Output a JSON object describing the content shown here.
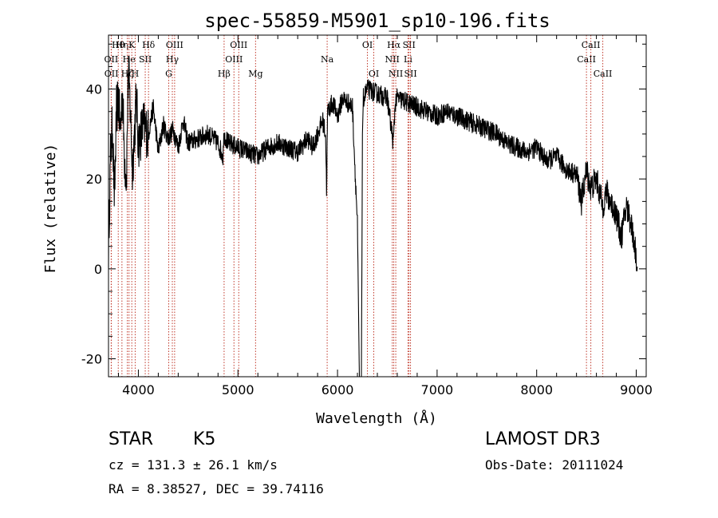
{
  "chart_data": {
    "type": "line",
    "title": "spec-55859-M5901_sp10-196.fits",
    "xlabel": "Wavelength (Å)",
    "ylabel": "Flux (relative)",
    "xlim": [
      3700,
      9100
    ],
    "ylim": [
      -24,
      52
    ],
    "xticks": [
      4000,
      5000,
      6000,
      7000,
      8000,
      9000
    ],
    "yticks": [
      -20,
      0,
      20,
      40
    ],
    "series": [
      {
        "name": "flux",
        "x": [
          3700,
          3720,
          3740,
          3760,
          3780,
          3800,
          3820,
          3840,
          3860,
          3880,
          3900,
          3920,
          3940,
          3960,
          3980,
          4000,
          4050,
          4100,
          4150,
          4200,
          4250,
          4300,
          4350,
          4400,
          4450,
          4500,
          4600,
          4700,
          4800,
          4850,
          4860,
          4900,
          5000,
          5100,
          5200,
          5300,
          5400,
          5500,
          5600,
          5700,
          5750,
          5800,
          5850,
          5880,
          5890,
          5900,
          5950,
          6000,
          6050,
          6100,
          6150,
          6180,
          6200,
          6220,
          6240,
          6250,
          6260,
          6300,
          6400,
          6500,
          6560,
          6580,
          6600,
          6700,
          6800,
          6900,
          7000,
          7100,
          7200,
          7300,
          7400,
          7500,
          7600,
          7700,
          7800,
          7900,
          8000,
          8100,
          8200,
          8300,
          8400,
          8450,
          8500,
          8542,
          8600,
          8662,
          8700,
          8800,
          8850,
          8900,
          8950,
          9000,
          9010
        ],
        "y": [
          5,
          25,
          32,
          15,
          35,
          38,
          30,
          40,
          25,
          20,
          45,
          35,
          22,
          30,
          38,
          28,
          32,
          30,
          36,
          26,
          32,
          29,
          31,
          27,
          33,
          28,
          29,
          30,
          28,
          25,
          30,
          28,
          27,
          26,
          25,
          27,
          28,
          27,
          26,
          29,
          27,
          30,
          33,
          30,
          18,
          35,
          37,
          34,
          38,
          37,
          36,
          20,
          10,
          -25,
          -25,
          30,
          38,
          40,
          39,
          38,
          28,
          37,
          38,
          37,
          36,
          35,
          34,
          35,
          34,
          33,
          32,
          31,
          30,
          28,
          27,
          26,
          27,
          24,
          25,
          22,
          21,
          15,
          22,
          18,
          20,
          14,
          17,
          12,
          7,
          14,
          10,
          3,
          0
        ]
      }
    ],
    "lines": [
      {
        "label": "OII",
        "x": 3727,
        "row": 1
      },
      {
        "label": "OII",
        "x": 3729,
        "row": 2
      },
      {
        "label": "Hθ",
        "x": 3798,
        "row": 0
      },
      {
        "label": "Hη",
        "x": 3835,
        "row": 0
      },
      {
        "label": "Hζ",
        "x": 3889,
        "row": 2
      },
      {
        "label": "He",
        "x": 3906,
        "row": 1
      },
      {
        "label": "K",
        "x": 3934,
        "row": 0
      },
      {
        "label": "H",
        "x": 3968,
        "row": 2
      },
      {
        "label": "SII",
        "x": 4069,
        "row": 1
      },
      {
        "label": "Hδ",
        "x": 4102,
        "row": 0
      },
      {
        "label": "G",
        "x": 4305,
        "row": 2
      },
      {
        "label": "Hγ",
        "x": 4341,
        "row": 1
      },
      {
        "label": "OIII",
        "x": 4364,
        "row": 0
      },
      {
        "label": "Hβ",
        "x": 4861,
        "row": 2
      },
      {
        "label": "OIII",
        "x": 4960,
        "row": 1
      },
      {
        "label": "OIII",
        "x": 5008,
        "row": 0
      },
      {
        "label": "Mg",
        "x": 5177,
        "row": 2
      },
      {
        "label": "Na",
        "x": 5896,
        "row": 1
      },
      {
        "label": "OI",
        "x": 6300,
        "row": 0
      },
      {
        "label": "OI",
        "x": 6364,
        "row": 2
      },
      {
        "label": "NII",
        "x": 6550,
        "row": 1
      },
      {
        "label": "Hα",
        "x": 6565,
        "row": 0
      },
      {
        "label": "NII",
        "x": 6585,
        "row": 2
      },
      {
        "label": "Li",
        "x": 6708,
        "row": 1
      },
      {
        "label": "SII",
        "x": 6718,
        "row": 0
      },
      {
        "label": "SII",
        "x": 6733,
        "row": 2
      },
      {
        "label": "CaII",
        "x": 8500,
        "row": 1
      },
      {
        "label": "CaII",
        "x": 8544,
        "row": 0
      },
      {
        "label": "CaII",
        "x": 8664,
        "row": 2
      }
    ]
  },
  "info": {
    "object_class": "STAR",
    "subclass": "K5",
    "redshift": "cz = 131.3 ± 26.1 km/s",
    "coordinates": "RA =   8.38527, DEC =  39.74116",
    "survey": "LAMOST DR3",
    "obs_date": "Obs-Date: 20111024"
  }
}
